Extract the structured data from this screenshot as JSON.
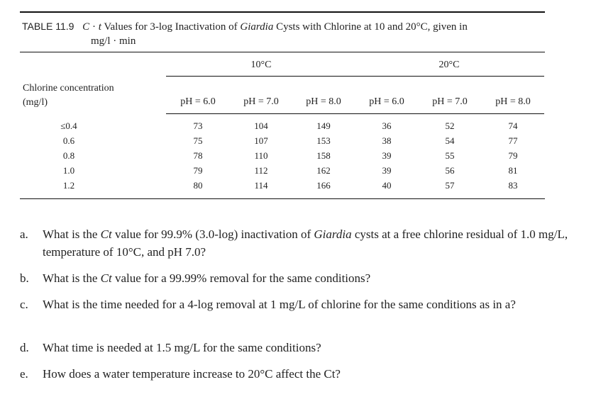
{
  "table": {
    "number": "TABLE 11.9",
    "title_prefix": "C",
    "title_dot": "·",
    "title_t": "t",
    "title_mid": " Values for 3-log Inactivation of ",
    "title_organism": "Giardia",
    "title_suffix": " Cysts with Chlorine at 10 and 20°C, given in",
    "title_line2": "mg/l · min",
    "stub_head_line1": "Chlorine concentration",
    "stub_head_line2": "(mg/l)",
    "group_10": "10°C",
    "group_20": "20°C",
    "col_heads": [
      "pH = 6.0",
      "pH = 7.0",
      "pH = 8.0",
      "pH = 6.0",
      "pH = 7.0",
      "pH = 8.0"
    ],
    "rows": [
      {
        "conc": "≤0.4",
        "values": [
          "73",
          "104",
          "149",
          "36",
          "52",
          "74"
        ]
      },
      {
        "conc": "0.6",
        "values": [
          "75",
          "107",
          "153",
          "38",
          "54",
          "77"
        ]
      },
      {
        "conc": "0.8",
        "values": [
          "78",
          "110",
          "158",
          "39",
          "55",
          "79"
        ]
      },
      {
        "conc": "1.0",
        "values": [
          "79",
          "112",
          "162",
          "39",
          "56",
          "81"
        ]
      },
      {
        "conc": "1.2",
        "values": [
          "80",
          "114",
          "166",
          "40",
          "57",
          "83"
        ]
      }
    ]
  },
  "questions": [
    {
      "label": "a.",
      "pre": "What is the ",
      "ct": "Ct",
      "mid": " value for 99.9% (3.0-log) inactivation of ",
      "org": "Giardia",
      "post": " cysts at a free chlorine residual of 1.0 mg/L, temperature of 10°C, and pH 7.0?"
    },
    {
      "label": "b.",
      "pre": "What is the ",
      "ct": "Ct",
      "mid": " value for a 99.99% removal for the same conditions?",
      "org": "",
      "post": ""
    },
    {
      "label": "c.",
      "pre": "What is the time needed for a 4-log removal at 1 mg/L of chlorine for the same conditions as in a?",
      "ct": "",
      "mid": "",
      "org": "",
      "post": ""
    },
    {
      "label": "d.",
      "pre": "What time is needed at 1.5 mg/L for the same conditions?",
      "ct": "",
      "mid": "",
      "org": "",
      "post": ""
    },
    {
      "label": "e.",
      "pre": "How does a water temperature increase to 20°C affect the Ct?",
      "ct": "",
      "mid": "",
      "org": "",
      "post": ""
    }
  ]
}
